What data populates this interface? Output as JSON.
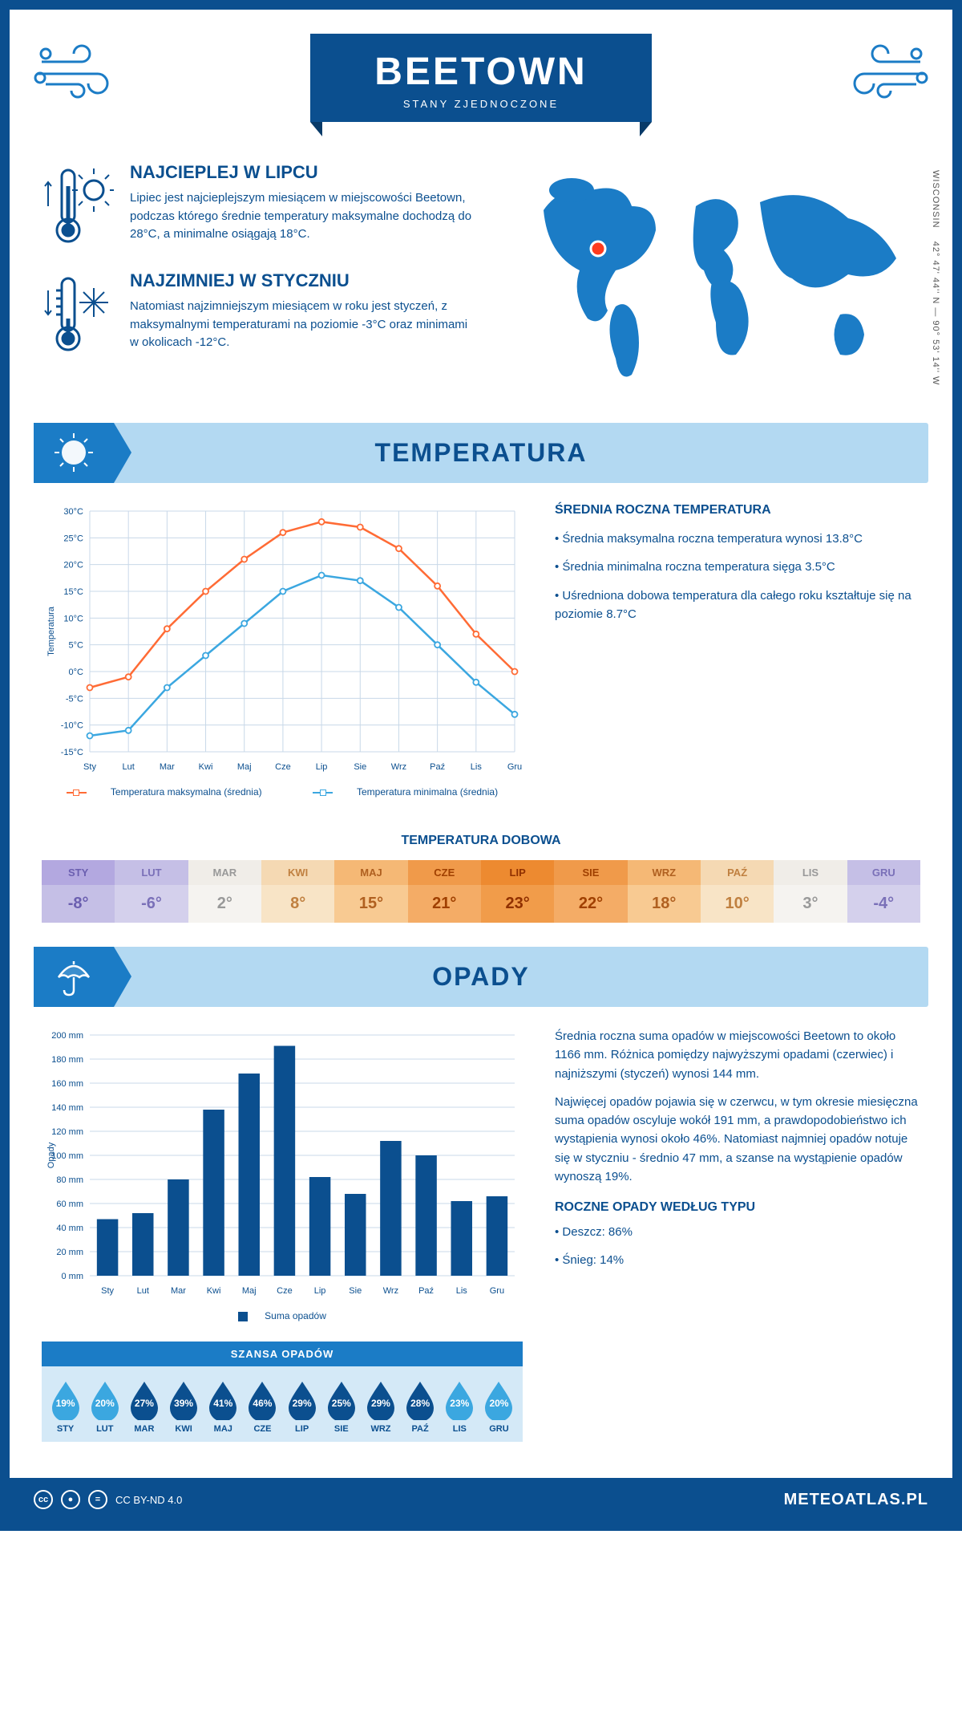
{
  "header": {
    "city": "BEETOWN",
    "country": "STANY ZJEDNOCZONE"
  },
  "coords": {
    "full": "42° 47' 44'' N — 90° 53' 14'' W",
    "region": "WISCONSIN"
  },
  "facts": {
    "hot": {
      "title": "NAJCIEPLEJ W LIPCU",
      "text": "Lipiec jest najcieplejszym miesiącem w miejscowości Beetown, podczas którego średnie temperatury maksymalne dochodzą do 28°C, a minimalne osiągają 18°C."
    },
    "cold": {
      "title": "NAJZIMNIEJ W STYCZNIU",
      "text": "Natomiast najzimniejszym miesiącem w roku jest styczeń, z maksymalnymi temperaturami na poziomie -3°C oraz minimami w okolicach -12°C."
    }
  },
  "temp_section": {
    "title": "TEMPERATURA",
    "side_title": "ŚREDNIA ROCZNA TEMPERATURA",
    "bullets": [
      "• Średnia maksymalna roczna temperatura wynosi 13.8°C",
      "• Średnia minimalna roczna temperatura sięga 3.5°C",
      "• Uśredniona dobowa temperatura dla całego roku kształtuje się na poziomie 8.7°C"
    ],
    "chart": {
      "months": [
        "Sty",
        "Lut",
        "Mar",
        "Kwi",
        "Maj",
        "Cze",
        "Lip",
        "Sie",
        "Wrz",
        "Paź",
        "Lis",
        "Gru"
      ],
      "max_series": [
        -3,
        -1,
        8,
        15,
        21,
        26,
        28,
        27,
        23,
        16,
        7,
        0
      ],
      "min_series": [
        -12,
        -11,
        -3,
        3,
        9,
        15,
        18,
        17,
        12,
        5,
        -2,
        -8
      ],
      "ylabel": "Temperatura",
      "ylim": [
        -15,
        30
      ],
      "ytick_step": 5,
      "colors": {
        "max": "#ff6b35",
        "min": "#3ba7e0",
        "grid": "#c8d8e8",
        "axis": "#0b4f8f"
      },
      "legend": {
        "max": "Temperatura maksymalna (średnia)",
        "min": "Temperatura minimalna (średnia)"
      }
    },
    "daily": {
      "title": "TEMPERATURA DOBOWA",
      "months": [
        "STY",
        "LUT",
        "MAR",
        "KWI",
        "MAJ",
        "CZE",
        "LIP",
        "SIE",
        "WRZ",
        "PAŹ",
        "LIS",
        "GRU"
      ],
      "values": [
        "-8°",
        "-6°",
        "2°",
        "8°",
        "15°",
        "21°",
        "23°",
        "22°",
        "18°",
        "10°",
        "3°",
        "-4°"
      ],
      "head_colors": [
        "#b3a8e0",
        "#c5bfe6",
        "#f0ede8",
        "#f5d9b3",
        "#f5b875",
        "#f09a4a",
        "#ed8a30",
        "#f09a4a",
        "#f5b875",
        "#f5d9b3",
        "#f0ede8",
        "#c5bfe6"
      ],
      "val_colors": [
        "#c5bfe6",
        "#d4d0ec",
        "#f5f3f0",
        "#f8e4c6",
        "#f8ca92",
        "#f4ac66",
        "#f19c4a",
        "#f4ac66",
        "#f8ca92",
        "#f8e4c6",
        "#f5f3f0",
        "#d4d0ec"
      ],
      "text_colors": [
        "#6b5fb0",
        "#7a70b8",
        "#999",
        "#c08040",
        "#b06020",
        "#a04000",
        "#903000",
        "#a04000",
        "#b06020",
        "#c08040",
        "#999",
        "#7a70b8"
      ]
    }
  },
  "precip_section": {
    "title": "OPADY",
    "text1": "Średnia roczna suma opadów w miejscowości Beetown to około 1166 mm. Różnica pomiędzy najwyższymi opadami (czerwiec) i najniższymi (styczeń) wynosi 144 mm.",
    "text2": "Najwięcej opadów pojawia się w czerwcu, w tym okresie miesięczna suma opadów oscyluje wokół 191 mm, a prawdopodobieństwo ich wystąpienia wynosi około 46%. Natomiast najmniej opadów notuje się w styczniu - średnio 47 mm, a szanse na wystąpienie opadów wynoszą 19%.",
    "chart": {
      "months": [
        "Sty",
        "Lut",
        "Mar",
        "Kwi",
        "Maj",
        "Cze",
        "Lip",
        "Sie",
        "Wrz",
        "Paź",
        "Lis",
        "Gru"
      ],
      "values": [
        47,
        52,
        80,
        138,
        168,
        191,
        82,
        68,
        112,
        100,
        62,
        66
      ],
      "ylabel": "Opady",
      "ylim": [
        0,
        200
      ],
      "ytick_step": 20,
      "bar_color": "#0b4f8f",
      "grid": "#c8d8e8",
      "legend": "Suma opadów"
    },
    "chance": {
      "title": "SZANSA OPADÓW",
      "months": [
        "STY",
        "LUT",
        "MAR",
        "KWI",
        "MAJ",
        "CZE",
        "LIP",
        "SIE",
        "WRZ",
        "PAŹ",
        "LIS",
        "GRU"
      ],
      "values": [
        "19%",
        "20%",
        "27%",
        "39%",
        "41%",
        "46%",
        "29%",
        "25%",
        "29%",
        "28%",
        "23%",
        "20%"
      ],
      "colors": [
        "#3ba7e0",
        "#3ba7e0",
        "#0b4f8f",
        "#0b4f8f",
        "#0b4f8f",
        "#0b4f8f",
        "#0b4f8f",
        "#0b4f8f",
        "#0b4f8f",
        "#0b4f8f",
        "#3ba7e0",
        "#3ba7e0"
      ]
    },
    "type": {
      "title": "ROCZNE OPADY WEDŁUG TYPU",
      "rain": "• Deszcz: 86%",
      "snow": "• Śnieg: 14%"
    }
  },
  "footer": {
    "license": "CC BY-ND 4.0",
    "site": "METEOATLAS.PL"
  }
}
